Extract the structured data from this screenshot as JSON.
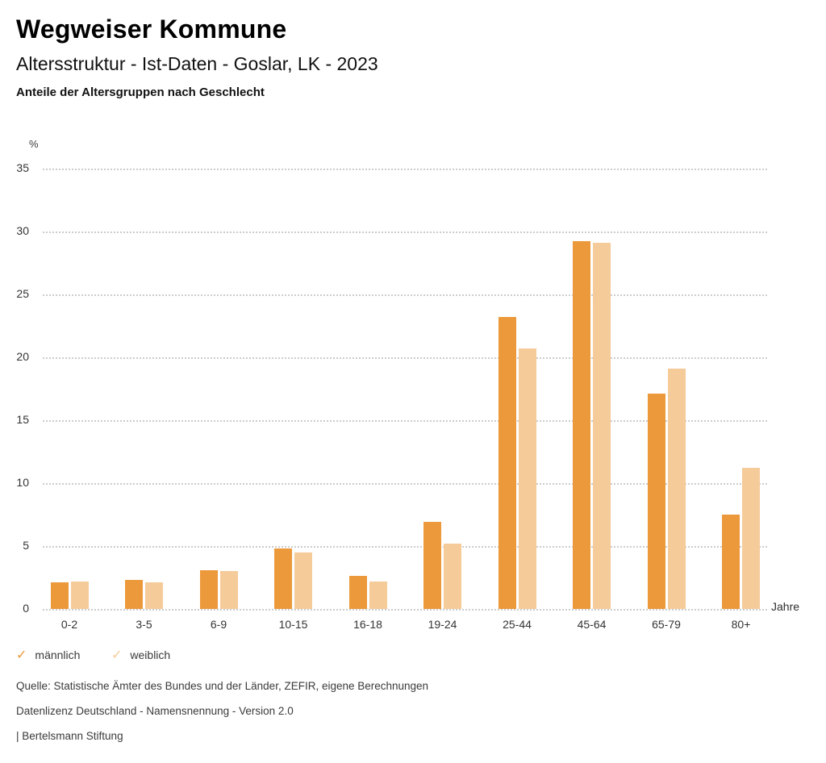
{
  "header": {
    "title": "Wegweiser Kommune",
    "subtitle": "Altersstruktur - Ist-Daten - Goslar, LK - 2023",
    "heading": "Anteile der Altersgruppen nach Geschlecht"
  },
  "chart_data": {
    "type": "bar",
    "title": "Anteile der Altersgruppen nach Geschlecht",
    "xlabel": "Jahre",
    "ylabel": "%",
    "ylim": [
      0,
      35
    ],
    "yticks": [
      35,
      30,
      25,
      20,
      15,
      10,
      5,
      0
    ],
    "grid": "horizontal-dotted",
    "legend_position": "bottom-left",
    "categories": [
      "0-2",
      "3-5",
      "6-9",
      "10-15",
      "16-18",
      "19-24",
      "25-44",
      "45-64",
      "65-79",
      "80+"
    ],
    "series": [
      {
        "name": "männlich",
        "color": "#EC993B",
        "values": [
          2.1,
          2.3,
          3.1,
          4.8,
          2.6,
          6.9,
          23.2,
          29.2,
          17.1,
          7.5
        ]
      },
      {
        "name": "weiblich",
        "color": "#F5CB9A",
        "values": [
          2.2,
          2.1,
          3.0,
          4.5,
          2.2,
          5.2,
          20.7,
          29.1,
          19.1,
          11.2
        ]
      }
    ]
  },
  "legend": {
    "check_icon": "✓",
    "items": [
      {
        "label": "männlich",
        "color": "#EC993B"
      },
      {
        "label": "weiblich",
        "color": "#F5CB9A"
      }
    ]
  },
  "footer": {
    "source": "Quelle: Statistische Ämter des Bundes und der Länder, ZEFIR, eigene Berechnungen",
    "license": "Datenlizenz Deutschland - Namensnennung - Version 2.0",
    "attribution": "| Bertelsmann Stiftung"
  }
}
